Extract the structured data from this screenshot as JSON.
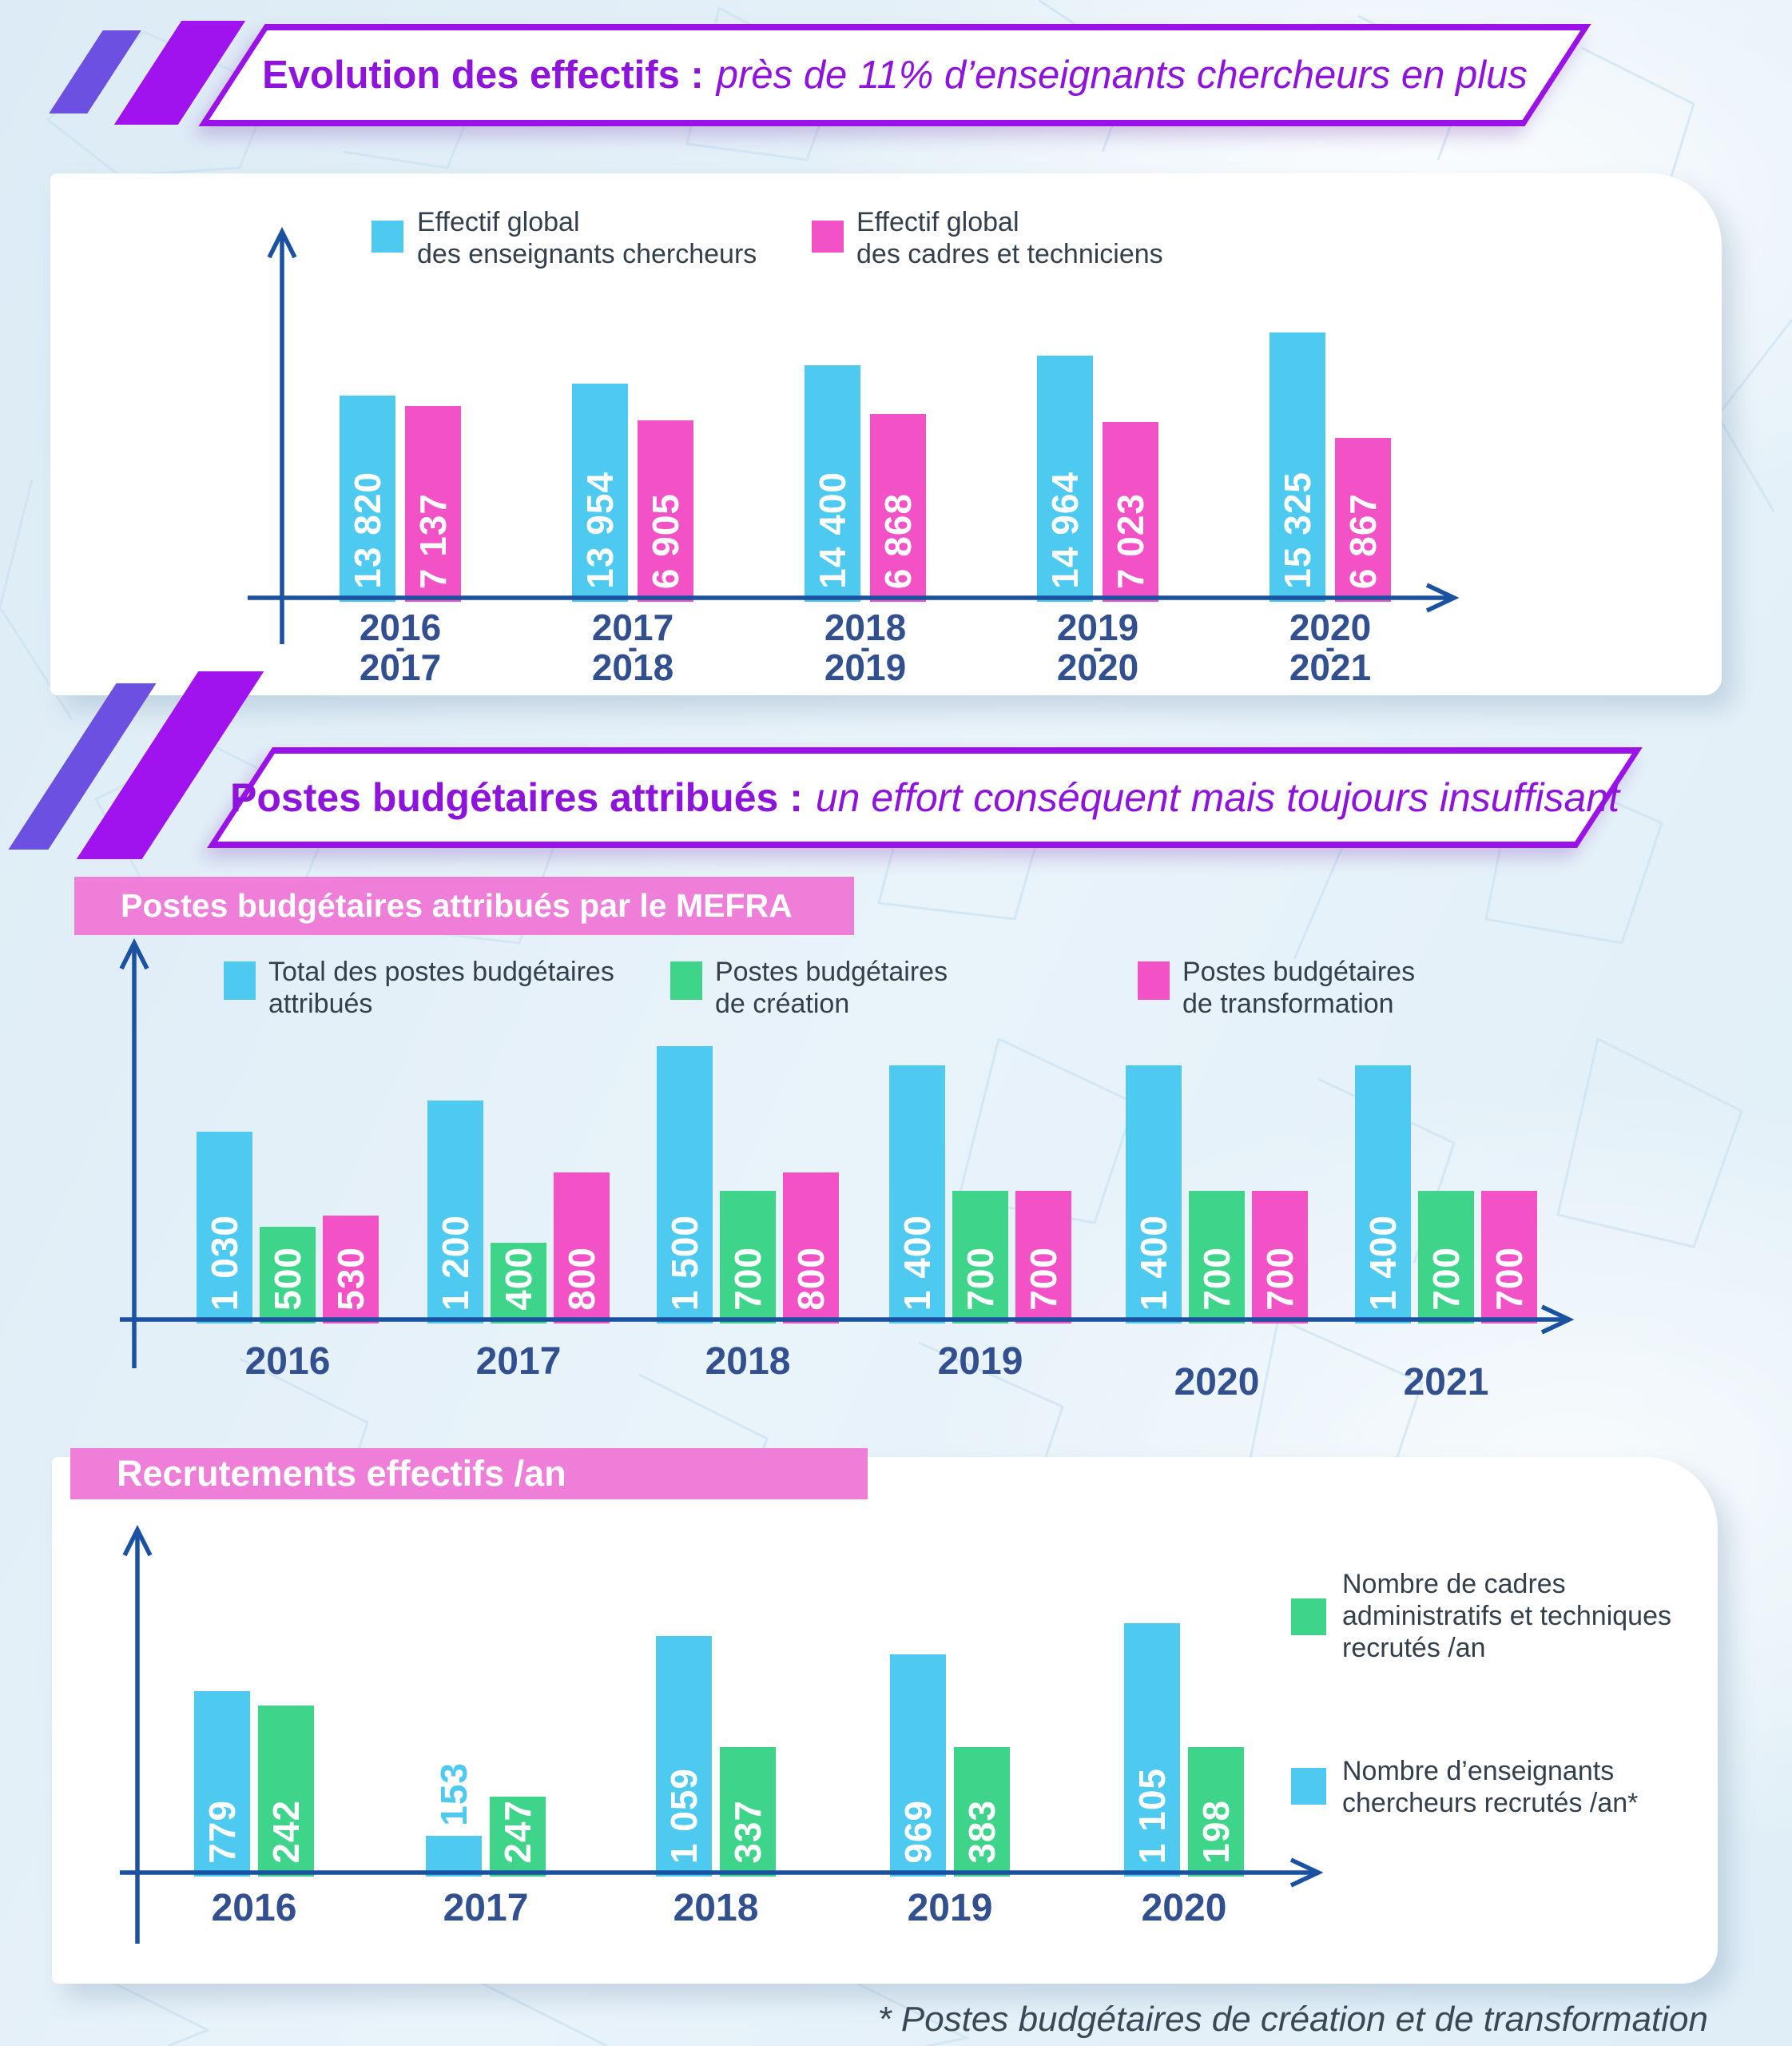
{
  "page": {
    "footnote": "* Postes budgétaires de création et de transformation"
  },
  "header1": {
    "bold": "Evolution des effectifs :",
    "italic": "près de 11% d’enseignants chercheurs en plus"
  },
  "header2": {
    "bold": "Postes budgétaires attribués :",
    "italic": "un effort conséquent mais toujours insuffisant"
  },
  "colors": {
    "cyan": "#4ecaf1",
    "green": "#3ed489",
    "pink_bar": "#f351c6",
    "pink_banner": "#ee7ed8",
    "purple_border": "#9a12e8",
    "purple_slash_blue": "#6b50e2",
    "purple_slash": "#a013ef",
    "title_purple": "#8e14dc",
    "navy_year": "#32508f",
    "axis_blue": "#1a51a0",
    "legend_text": "#333f4a"
  },
  "chart_data": [
    {
      "id": "effectifs",
      "type": "bar",
      "title": "Evolution des effectifs : près de 11% d’enseignants chercheurs en plus",
      "categories": [
        "2016-2017",
        "2017-2018",
        "2018-2019",
        "2019-2020",
        "2020-2021"
      ],
      "series": [
        {
          "name": "Effectif global des enseignants chercheurs",
          "color": "#4ecaf1",
          "values": [
            13820,
            13954,
            14400,
            14964,
            15325
          ]
        },
        {
          "name": "Effectif global des cadres et techniciens",
          "color": "#f351c6",
          "values": [
            7137,
            6905,
            6868,
            7023,
            6867
          ]
        }
      ],
      "legend_position": "top",
      "grid": false
    },
    {
      "id": "postes-budgetaires",
      "type": "bar",
      "title": "Postes budgétaires attribués par le MEFRA",
      "categories": [
        "2016",
        "2017",
        "2018",
        "2019",
        "2020",
        "2021"
      ],
      "series": [
        {
          "name": "Total des postes budgétaires attribués",
          "color": "#4ecaf1",
          "values": [
            1030,
            1200,
            1500,
            1400,
            1400,
            1400
          ]
        },
        {
          "name": "Postes budgétaires de création",
          "color": "#3ed489",
          "values": [
            500,
            400,
            700,
            700,
            700,
            700
          ]
        },
        {
          "name": "Postes budgétaires de transformation",
          "color": "#f351c6",
          "values": [
            530,
            800,
            800,
            700,
            700,
            700
          ]
        }
      ],
      "legend_position": "top",
      "grid": false
    },
    {
      "id": "recrutements",
      "type": "bar",
      "title": "Recrutements effectifs /an",
      "categories": [
        "2016",
        "2017",
        "2018",
        "2019",
        "2020"
      ],
      "series": [
        {
          "name": "Nombre d’enseignants chercheurs recrutés /an*",
          "color": "#4ecaf1",
          "values": [
            779,
            153,
            1059,
            969,
            1105
          ]
        },
        {
          "name": "Nombre de cadres administratifs et techniques recrutés /an",
          "color": "#3ed489",
          "values": [
            242,
            247,
            337,
            383,
            198
          ]
        }
      ],
      "legend_position": "right",
      "grid": false
    }
  ],
  "legends": {
    "chart1": [
      {
        "lines": [
          "Effectif global",
          "des enseignants chercheurs"
        ]
      },
      {
        "lines": [
          "Effectif global",
          "des cadres et techniciens"
        ]
      }
    ],
    "chart2": [
      {
        "lines": [
          "Total des postes budgétaires",
          "attribués"
        ]
      },
      {
        "lines": [
          "Postes budgétaires",
          "de création"
        ]
      },
      {
        "lines": [
          "Postes budgétaires",
          "de transformation"
        ]
      }
    ],
    "chart3": [
      {
        "lines": [
          "Nombre de cadres",
          "administratifs et techniques",
          "recrutés /an"
        ]
      },
      {
        "lines": [
          "Nombre d’enseignants",
          "chercheurs recrutés /an*"
        ]
      }
    ]
  }
}
